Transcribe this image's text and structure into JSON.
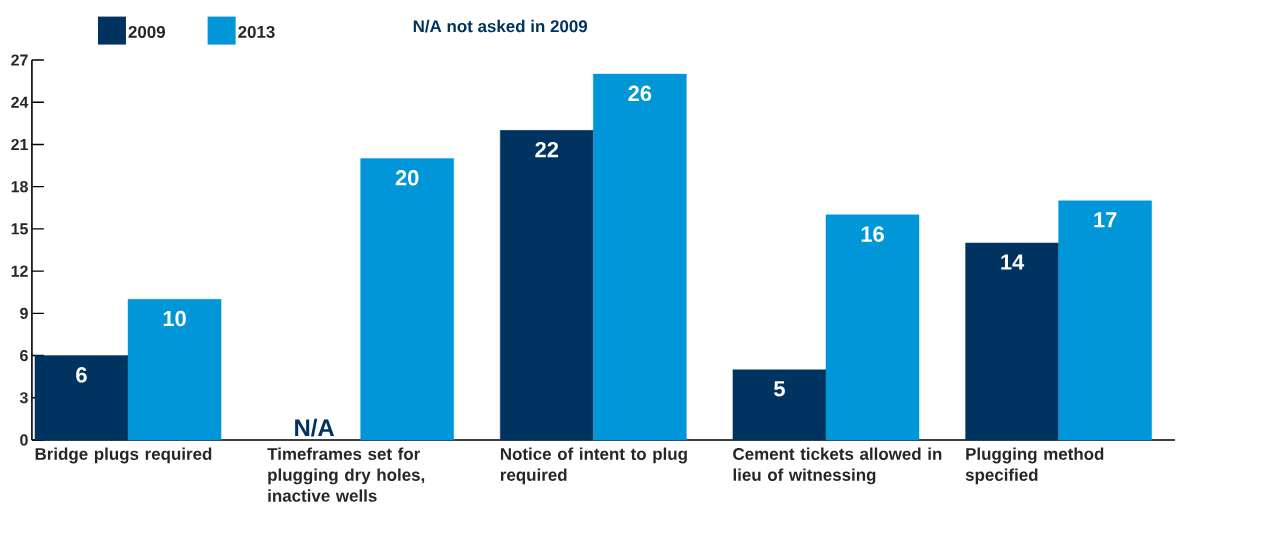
{
  "chart_data": {
    "type": "bar",
    "categories": [
      "Bridge plugs required",
      "Timeframes set for plugging dry holes, inactive wells",
      "Notice of intent to plug required",
      "Cement tickets allowed in lieu of witnessing",
      "Plugging method specified"
    ],
    "series": [
      {
        "name": "2009",
        "color": "#00335f",
        "values": [
          6,
          null,
          22,
          5,
          14
        ],
        "value_labels": [
          "6",
          "N/A",
          "22",
          "5",
          "14"
        ]
      },
      {
        "name": "2013",
        "color": "#0096d8",
        "values": [
          10,
          20,
          26,
          16,
          17
        ],
        "value_labels": [
          "10",
          "20",
          "26",
          "16",
          "17"
        ]
      }
    ],
    "ylim": [
      0,
      27
    ],
    "yticks": [
      0,
      3,
      6,
      9,
      12,
      15,
      18,
      21,
      24,
      27
    ],
    "legend": "top left",
    "grid": false,
    "annotations": [
      "N/A not asked in 2009"
    ]
  }
}
